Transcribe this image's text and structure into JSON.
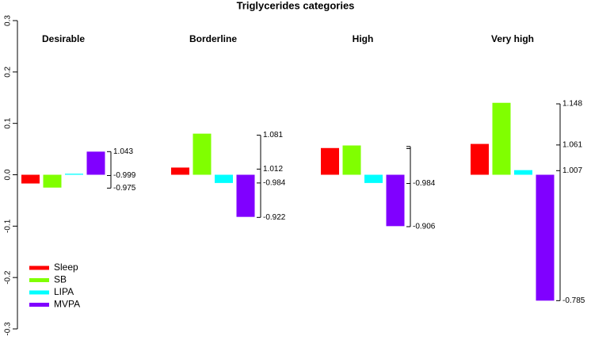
{
  "chart_data": {
    "type": "bar",
    "title": "Triglycerides categories",
    "categories": [
      "Desirable",
      "Borderline",
      "High",
      "Very high"
    ],
    "series": [
      {
        "name": "Sleep",
        "color": "#ff0000",
        "values": [
          -0.017,
          0.014,
          0.052,
          0.06
        ]
      },
      {
        "name": "SB",
        "color": "#80ff00",
        "values": [
          -0.025,
          0.08,
          0.057,
          0.14
        ]
      },
      {
        "name": "LIPA",
        "color": "#00ffff",
        "values": [
          0.002,
          -0.016,
          -0.016,
          0.009
        ]
      },
      {
        "name": "MVPA",
        "color": "#8000ff",
        "values": [
          0.045,
          -0.082,
          -0.1,
          -0.245
        ]
      }
    ],
    "ylim": [
      -0.3,
      0.3
    ],
    "yticks": [
      -0.3,
      -0.2,
      -0.1,
      {
        "value": 0,
        "label": "0.0"
      },
      0.1,
      0.2,
      0.3
    ],
    "right_scales": [
      [
        {
          "value": 0.045,
          "label": "1.043"
        },
        {
          "value": -0.0015,
          "label": "-0.999"
        },
        {
          "value": -0.026,
          "label": "-0.975"
        }
      ],
      [
        {
          "value": 0.077,
          "label": "1.081"
        },
        {
          "value": 0.011,
          "label": "1.012"
        },
        {
          "value": -0.016,
          "label": "-0.984"
        },
        {
          "value": -0.083,
          "label": "-0.922"
        }
      ],
      [
        {
          "value": 0.055,
          "label": null
        },
        {
          "value": 0.051,
          "label": null
        },
        {
          "value": -0.017,
          "label": "-0.984"
        },
        {
          "value": -0.101,
          "label": "-0.906"
        }
      ],
      [
        {
          "value": 0.138,
          "label": "1.148"
        },
        {
          "value": 0.058,
          "label": "1.061"
        },
        {
          "value": 0.008,
          "label": "1.007"
        },
        {
          "value": -0.245,
          "label": "-0.785"
        }
      ]
    ],
    "legend": "bottom-left"
  }
}
